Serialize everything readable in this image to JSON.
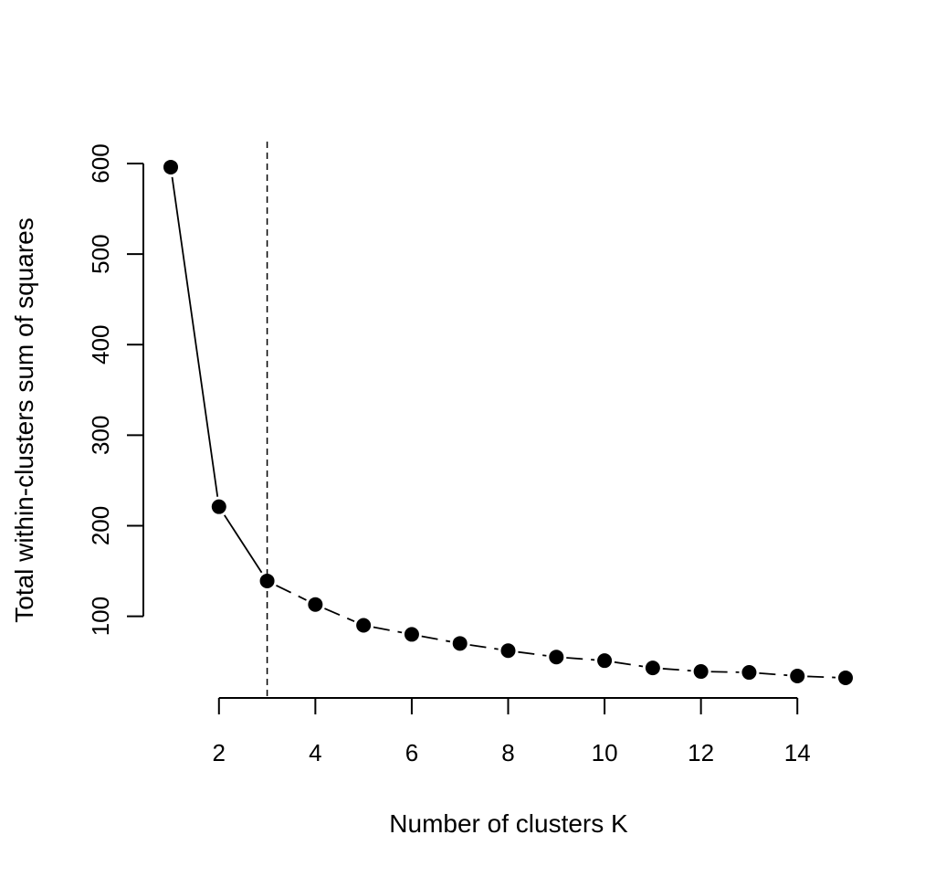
{
  "chart_data": {
    "type": "line",
    "title": "",
    "xlabel": "Number of clusters K",
    "ylabel": "Total within-clusters sum of squares",
    "x": [
      1,
      2,
      3,
      4,
      5,
      6,
      7,
      8,
      9,
      10,
      11,
      12,
      13,
      14,
      15
    ],
    "series": [
      {
        "values": [
          596,
          221,
          139,
          113,
          90,
          80,
          70,
          62,
          55,
          51,
          43,
          39,
          38,
          34,
          32
        ]
      }
    ],
    "x_ticks": [
      2,
      4,
      6,
      8,
      10,
      12,
      14
    ],
    "x_tick_labels": [
      "2",
      "4",
      "6",
      "8",
      "10",
      "12",
      "14"
    ],
    "y_ticks": [
      100,
      200,
      300,
      400,
      500,
      600
    ],
    "y_tick_labels": [
      "100",
      "200",
      "300",
      "400",
      "500",
      "600"
    ],
    "xlim": [
      1,
      15
    ],
    "ylim": [
      32,
      600
    ],
    "vline_x": 3,
    "grid": false,
    "colors": {
      "line": "#000000",
      "points": "#000000",
      "background": "#ffffff"
    }
  }
}
